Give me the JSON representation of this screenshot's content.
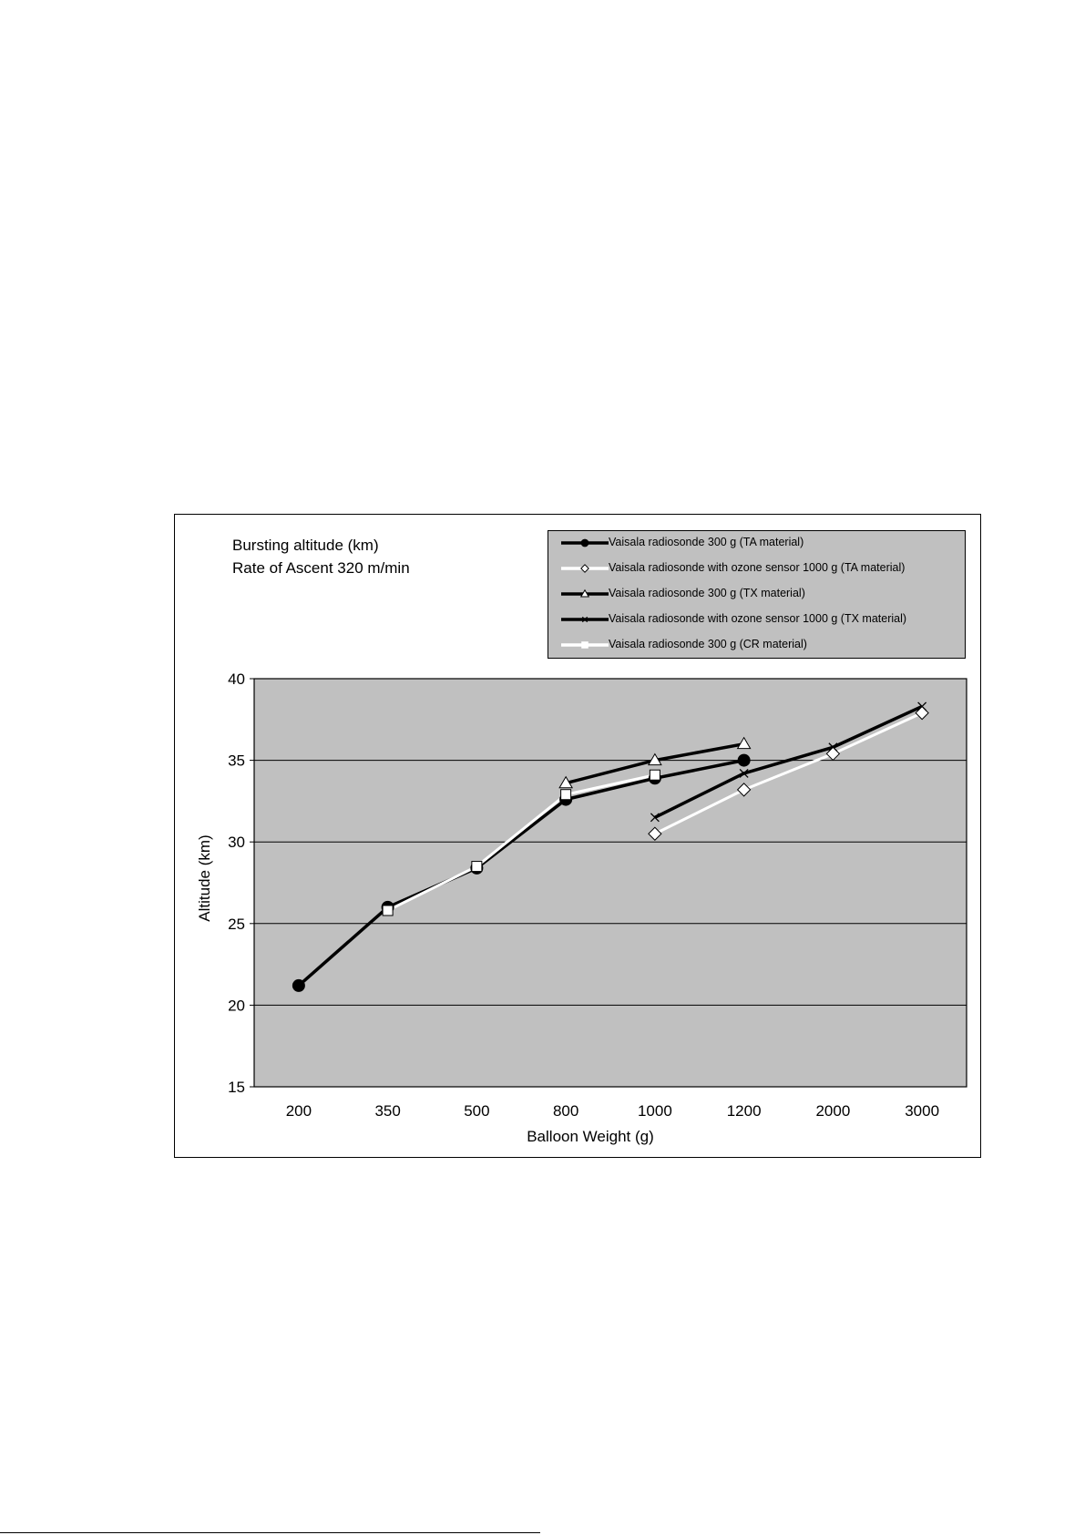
{
  "chart_data": {
    "type": "line",
    "title_lines": [
      "Bursting altitude (km)",
      "Rate of Ascent 320 m/min"
    ],
    "xlabel": "Balloon Weight (g)",
    "ylabel": "Altitude  (km)",
    "categories": [
      "200",
      "350",
      "500",
      "800",
      "1000",
      "1200",
      "2000",
      "3000"
    ],
    "ylim": [
      15,
      40
    ],
    "yticks": [
      15,
      20,
      25,
      30,
      35,
      40
    ],
    "grid": true,
    "legend_position": "top-right",
    "plot_background": "#c0c0c0",
    "series": [
      {
        "name": "Vaisala radiosonde 300 g (TA material)",
        "line_color": "#000000",
        "marker": "circle",
        "marker_fill": "#000000",
        "values": [
          21.2,
          26.0,
          28.4,
          32.6,
          33.9,
          35.0,
          null,
          null
        ]
      },
      {
        "name": "Vaisala radiosonde with ozone sensor 1000 g (TA material)",
        "line_color": "#ffffff",
        "marker": "diamond",
        "marker_fill": "#ffffff",
        "values": [
          null,
          null,
          null,
          null,
          30.5,
          33.2,
          35.4,
          37.9
        ]
      },
      {
        "name": "Vaisala radiosonde 300 g (TX material)",
        "line_color": "#000000",
        "marker": "triangle",
        "marker_fill": "#ffffff",
        "values": [
          null,
          null,
          null,
          33.6,
          35.0,
          36.0,
          null,
          null
        ]
      },
      {
        "name": "Vaisala radiosonde with ozone sensor 1000 g (TX material)",
        "line_color": "#000000",
        "marker": "x",
        "marker_fill": "#000000",
        "values": [
          null,
          null,
          null,
          null,
          31.5,
          34.2,
          35.8,
          38.3
        ]
      },
      {
        "name": "Vaisala radiosonde 300 g (CR material)",
        "line_color": "#ffffff",
        "marker": "square",
        "marker_fill": "#ffffff",
        "values": [
          null,
          25.8,
          28.5,
          32.9,
          34.1,
          null,
          null,
          null
        ]
      }
    ]
  }
}
